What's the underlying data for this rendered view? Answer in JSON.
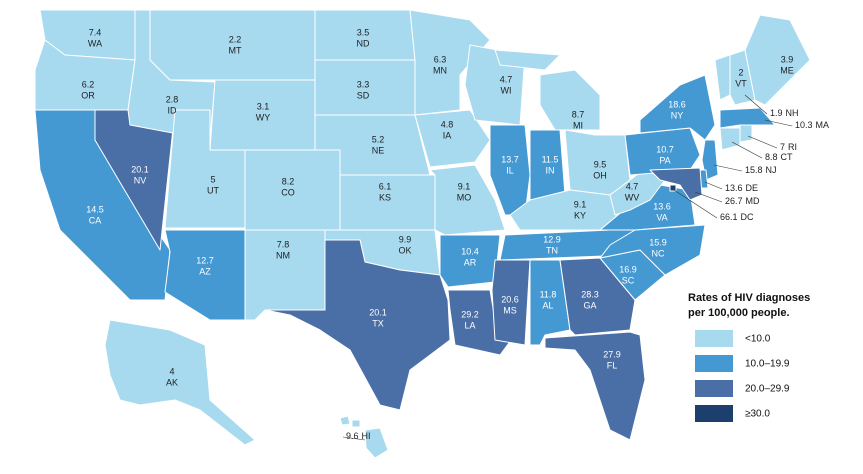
{
  "map": {
    "legend_title": [
      "Rates of HIV diagnoses",
      "per 100,000 people."
    ],
    "legend": [
      {
        "label": "<10.0",
        "range": [
          null,
          9.9
        ],
        "color": "#a7d9ef"
      },
      {
        "label": "10.0–19.9",
        "range": [
          10,
          19.9
        ],
        "color": "#4499d3"
      },
      {
        "label": "20.0–29.9",
        "range": [
          20,
          29.9
        ],
        "color": "#4a6ea6"
      },
      {
        "label": "≥30.0",
        "range": [
          30,
          null
        ],
        "color": "#1c3f6e"
      }
    ],
    "states": [
      {
        "abbr": "WA",
        "value": 7.4
      },
      {
        "abbr": "OR",
        "value": 6.2
      },
      {
        "abbr": "CA",
        "value": 14.5
      },
      {
        "abbr": "NV",
        "value": 20.1
      },
      {
        "abbr": "ID",
        "value": 2.8
      },
      {
        "abbr": "MT",
        "value": 2.2
      },
      {
        "abbr": "WY",
        "value": 3.1
      },
      {
        "abbr": "UT",
        "value": 5.0
      },
      {
        "abbr": "CO",
        "value": 8.2
      },
      {
        "abbr": "AZ",
        "value": 12.7
      },
      {
        "abbr": "NM",
        "value": 7.8
      },
      {
        "abbr": "ND",
        "value": 3.5
      },
      {
        "abbr": "SD",
        "value": 3.3
      },
      {
        "abbr": "NE",
        "value": 5.2
      },
      {
        "abbr": "KS",
        "value": 6.1
      },
      {
        "abbr": "OK",
        "value": 9.9
      },
      {
        "abbr": "TX",
        "value": 20.1
      },
      {
        "abbr": "MN",
        "value": 6.3
      },
      {
        "abbr": "IA",
        "value": 4.8
      },
      {
        "abbr": "MO",
        "value": 9.1
      },
      {
        "abbr": "AR",
        "value": 10.4
      },
      {
        "abbr": "LA",
        "value": 29.2
      },
      {
        "abbr": "WI",
        "value": 4.7
      },
      {
        "abbr": "IL",
        "value": 13.7
      },
      {
        "abbr": "MI",
        "value": 8.7
      },
      {
        "abbr": "IN",
        "value": 11.5
      },
      {
        "abbr": "OH",
        "value": 9.5
      },
      {
        "abbr": "KY",
        "value": 9.1
      },
      {
        "abbr": "TN",
        "value": 12.9
      },
      {
        "abbr": "MS",
        "value": 20.6
      },
      {
        "abbr": "AL",
        "value": 11.8
      },
      {
        "abbr": "GA",
        "value": 28.3
      },
      {
        "abbr": "FL",
        "value": 27.9
      },
      {
        "abbr": "SC",
        "value": 16.9
      },
      {
        "abbr": "NC",
        "value": 15.9
      },
      {
        "abbr": "VA",
        "value": 13.6
      },
      {
        "abbr": "WV",
        "value": 4.7
      },
      {
        "abbr": "PA",
        "value": 10.7
      },
      {
        "abbr": "NY",
        "value": 18.6
      },
      {
        "abbr": "VT",
        "value": 2.0
      },
      {
        "abbr": "NH",
        "value": 1.9
      },
      {
        "abbr": "ME",
        "value": 3.9
      },
      {
        "abbr": "MA",
        "value": 10.3
      },
      {
        "abbr": "CT",
        "value": 8.8
      },
      {
        "abbr": "RI",
        "value": 7.0
      },
      {
        "abbr": "NJ",
        "value": 15.8
      },
      {
        "abbr": "DE",
        "value": 13.6
      },
      {
        "abbr": "MD",
        "value": 26.7
      },
      {
        "abbr": "DC",
        "value": 66.1
      },
      {
        "abbr": "AK",
        "value": 4.0
      },
      {
        "abbr": "HI",
        "value": 9.6
      }
    ]
  }
}
